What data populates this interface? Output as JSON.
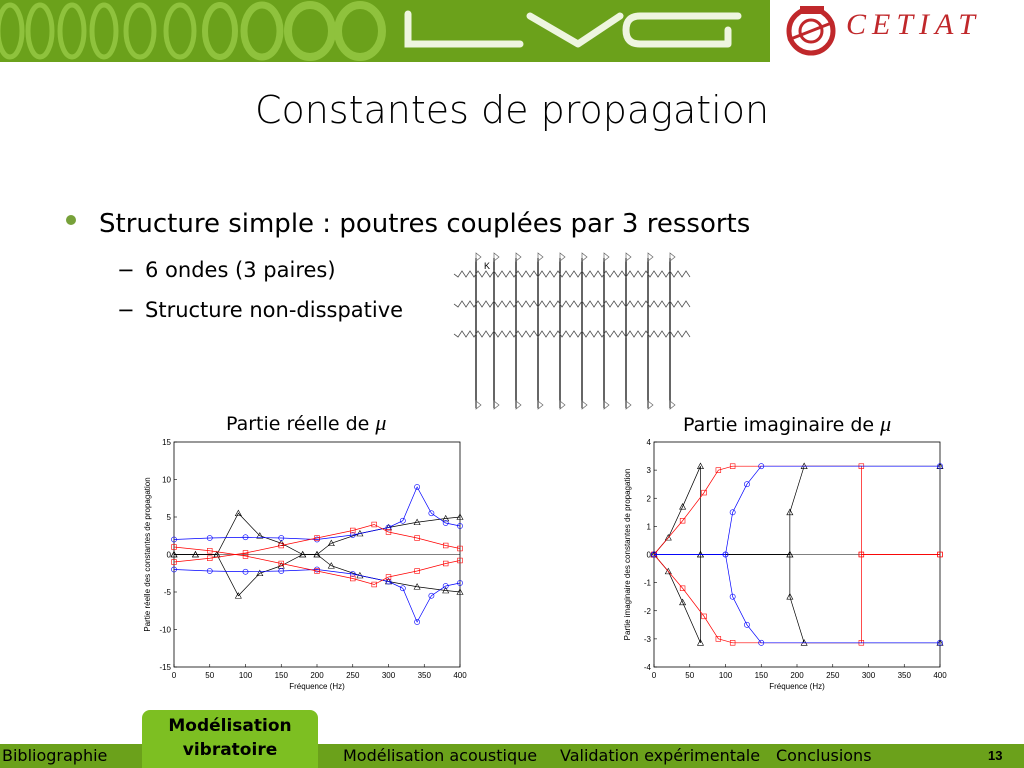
{
  "header": {
    "logo_left": "LVA",
    "logo_right": "CETIAT"
  },
  "slide": {
    "title": "Constantes de propagation",
    "bullet_main": "Structure simple : poutres couplées par 3 ressorts",
    "sub_bullets": [
      "6 ondes (3 paires)",
      "Structure non-disspative"
    ],
    "dash": "−",
    "caption_left": "Partie réelle de",
    "caption_right": "Partie imaginaire de",
    "mu": "μ",
    "diagram_label": "K"
  },
  "charts": [
    {
      "ylabel": "Partie réelle des constantes de propagation",
      "xlabel": "Fréquence (Hz)",
      "xticks": [
        "0",
        "50",
        "100",
        "150",
        "200",
        "250",
        "300",
        "350",
        "400"
      ],
      "yticks": [
        "15",
        "10",
        "5",
        "0",
        "-5",
        "-10",
        "-15"
      ]
    },
    {
      "ylabel": "Partie imaginaire des constantes de propagation",
      "xlabel": "Fréquence (Hz)",
      "xticks": [
        "0",
        "50",
        "100",
        "150",
        "200",
        "250",
        "300",
        "350",
        "400"
      ],
      "yticks": [
        "4",
        "3",
        "2",
        "1",
        "0",
        "-1",
        "-2",
        "-3",
        "-4"
      ]
    }
  ],
  "chart_data": [
    {
      "type": "line",
      "xlabel": "Fréquence (Hz)",
      "ylabel": "Partie réelle des constantes de propagation",
      "xlim": [
        0,
        400
      ],
      "ylim": [
        -15,
        15
      ],
      "series": [
        {
          "color": "#000000",
          "marker": "triangle",
          "x": [
            0,
            30,
            60,
            90,
            120,
            150,
            180,
            200,
            220,
            260,
            300,
            340,
            380,
            400
          ],
          "y": [
            0,
            0,
            0,
            5.5,
            2.5,
            1.5,
            0,
            0,
            1.5,
            2.8,
            3.6,
            4.3,
            4.8,
            5
          ]
        },
        {
          "color": "#0000ff",
          "marker": "circle",
          "x": [
            0,
            50,
            100,
            150,
            200,
            250,
            300,
            320,
            340,
            360,
            380,
            400
          ],
          "y": [
            2,
            2.2,
            2.3,
            2.2,
            2,
            2.6,
            3.6,
            4.5,
            9,
            5.5,
            4.2,
            3.8
          ]
        },
        {
          "color": "#ff0000",
          "marker": "square",
          "x": [
            0,
            50,
            100,
            150,
            200,
            250,
            280,
            300,
            340,
            380,
            400
          ],
          "y": [
            -1,
            -0.5,
            0.2,
            1.2,
            2.2,
            3.2,
            4,
            3,
            2.2,
            1.2,
            0.8
          ]
        }
      ]
    },
    {
      "type": "line",
      "xlabel": "Fréquence (Hz)",
      "ylabel": "Partie imaginaire des constantes de propagation",
      "xlim": [
        0,
        400
      ],
      "ylim": [
        -4,
        4
      ],
      "series": [
        {
          "color": "#000000",
          "marker": "triangle",
          "x": [
            0,
            20,
            40,
            65,
            65,
            190,
            190,
            210,
            400
          ],
          "y": [
            0,
            0.6,
            1.7,
            3.14,
            0,
            0,
            1.5,
            3.14,
            3.14
          ]
        },
        {
          "color": "#ff0000",
          "marker": "square",
          "x": [
            0,
            40,
            70,
            90,
            110,
            290,
            290,
            400
          ],
          "y": [
            0,
            1.2,
            2.2,
            3,
            3.14,
            3.14,
            0,
            0
          ]
        },
        {
          "color": "#0000ff",
          "marker": "circle",
          "x": [
            0,
            100,
            110,
            130,
            150,
            400
          ],
          "y": [
            0,
            0,
            1.5,
            2.5,
            3.14,
            3.14
          ]
        }
      ]
    }
  ],
  "footer": {
    "tabs": [
      "Bibliographie",
      "Modélisation vibratoire",
      "Modélisation acoustique",
      "Validation expérimentale",
      "Conclusions"
    ],
    "active_tab_line1": "Modélisation",
    "active_tab_line2": "vibratoire",
    "page_number": "13"
  }
}
